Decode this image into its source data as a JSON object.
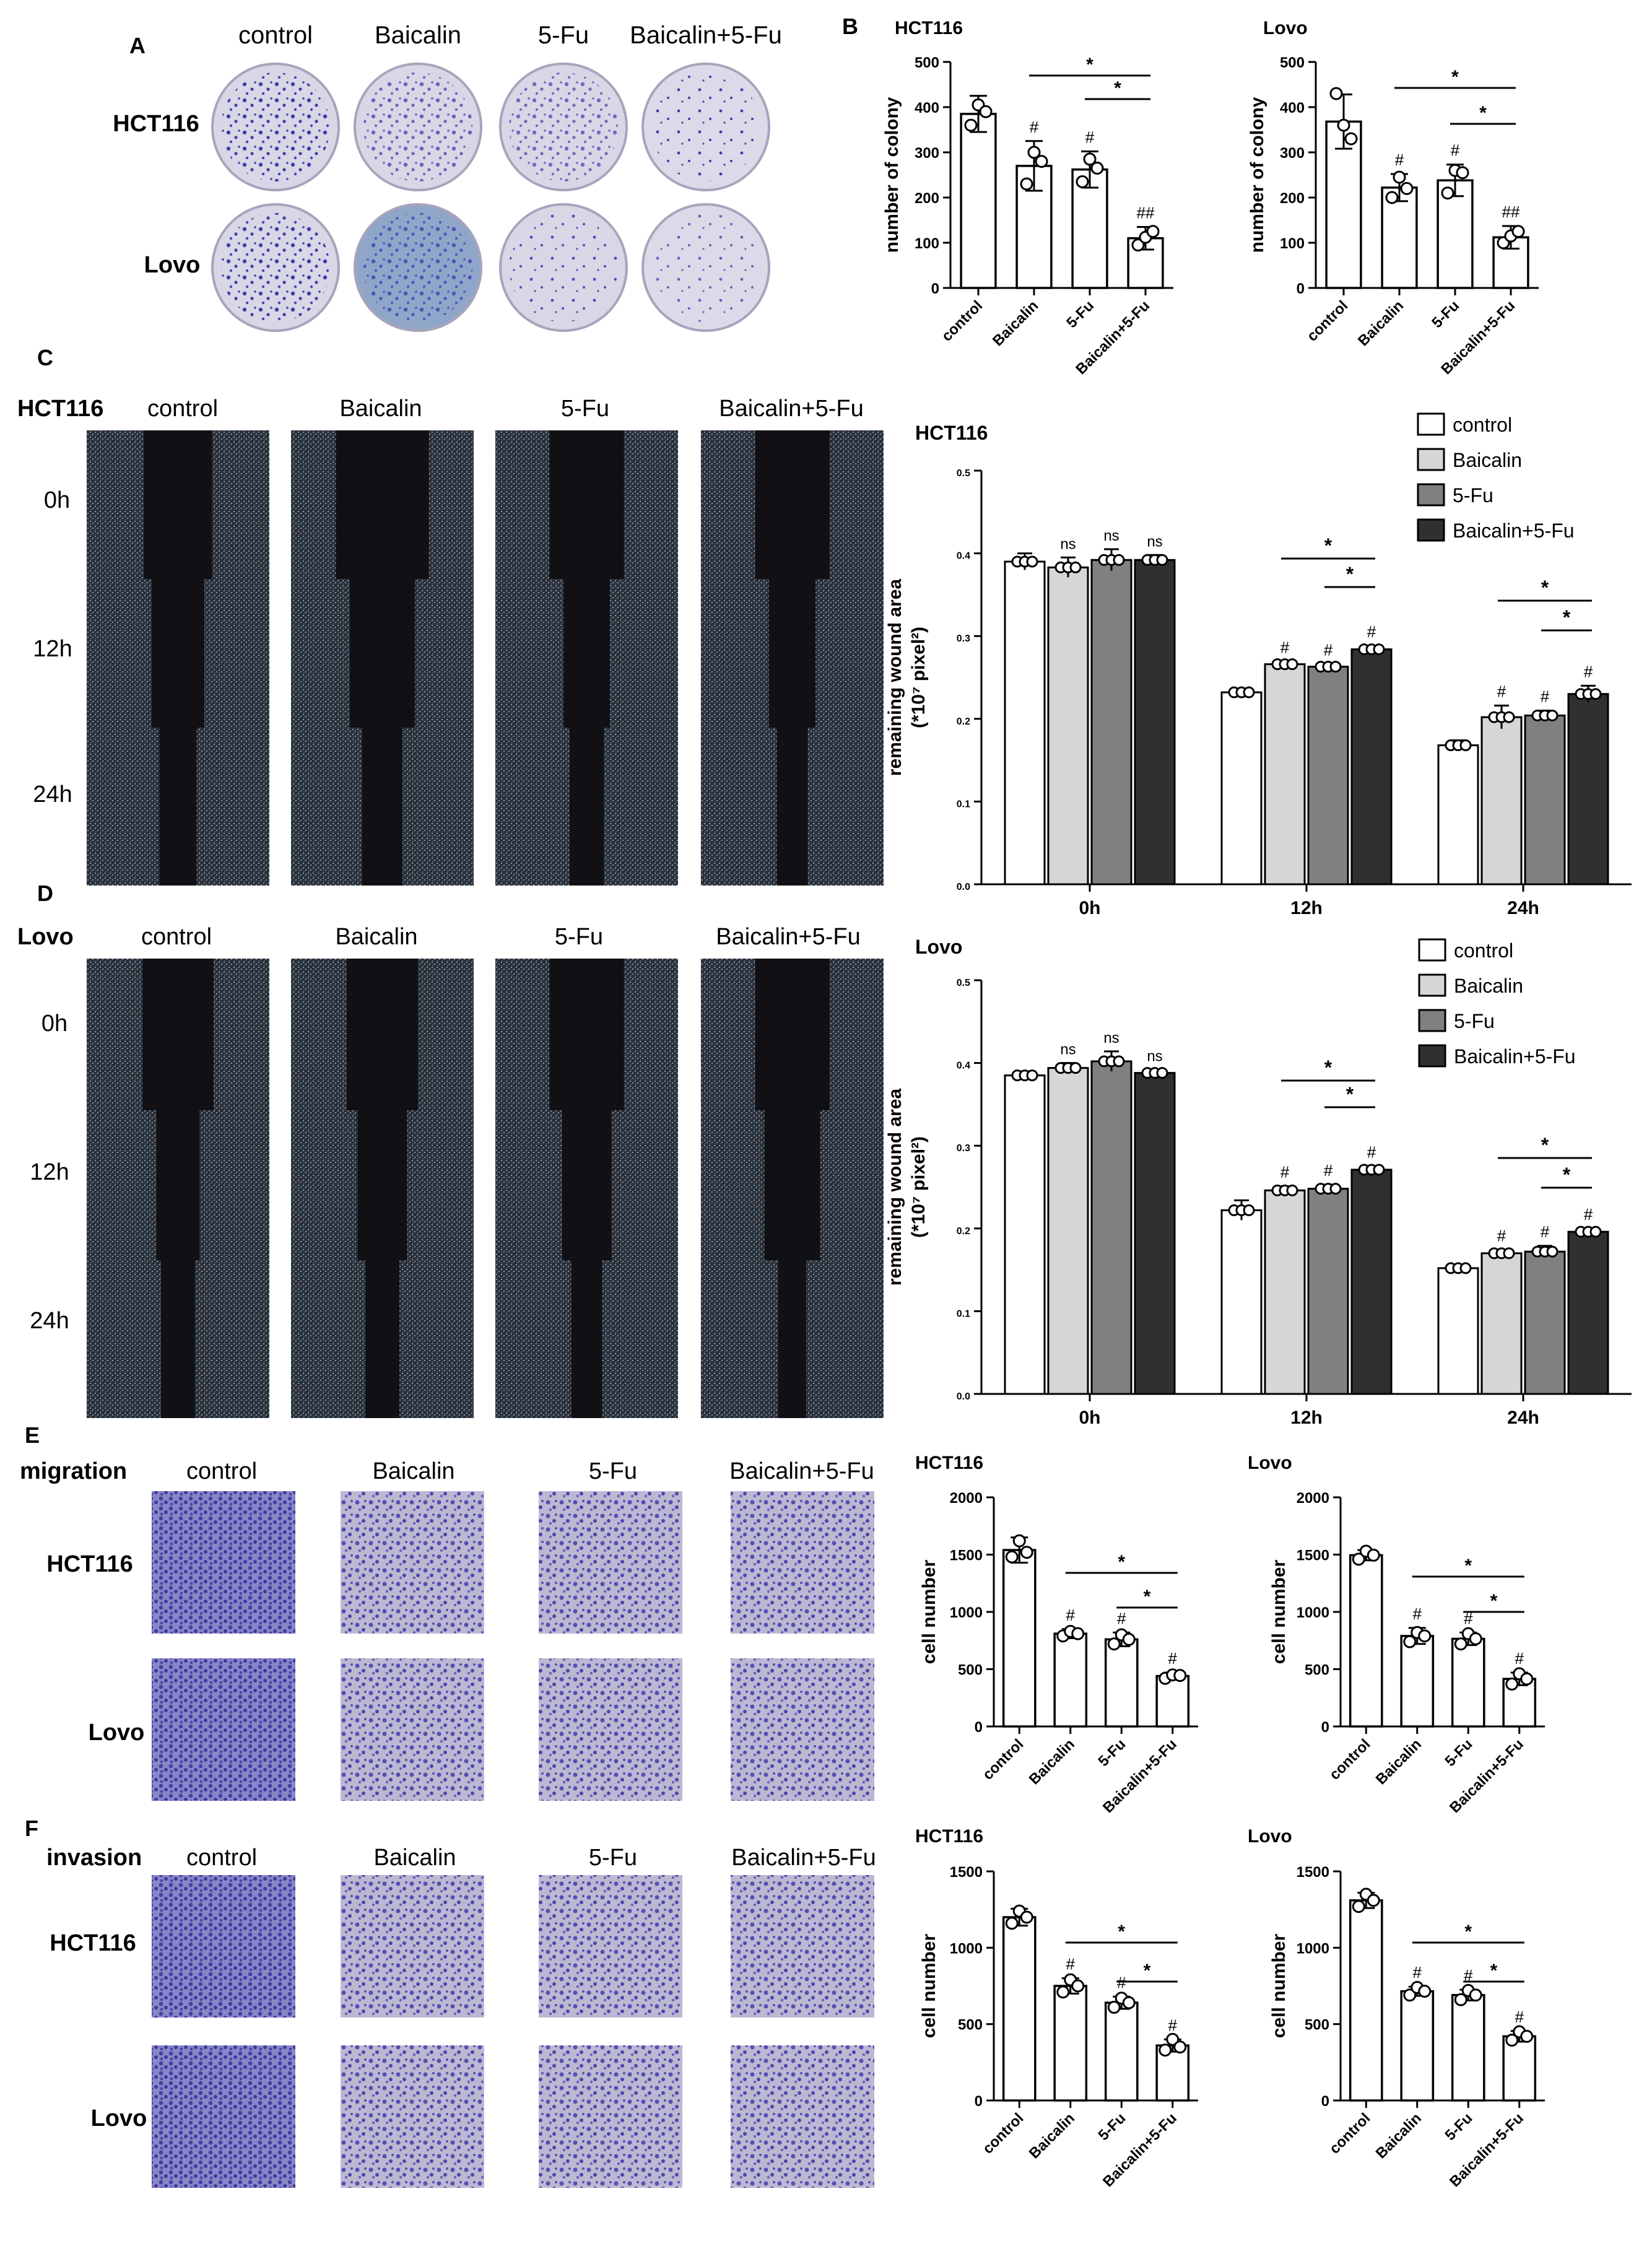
{
  "panel_letters": [
    "A",
    "B",
    "C",
    "D",
    "E",
    "F"
  ],
  "conditions": [
    "control",
    "Baicalin",
    "5-Fu",
    "Baicalin+5-Fu"
  ],
  "panelA": {
    "rows": [
      "HCT116",
      "Lovo"
    ]
  },
  "panelC": {
    "cell_line": "HCT116",
    "rows": [
      "0h",
      "12h",
      "24h"
    ]
  },
  "panelD": {
    "cell_line": "Lovo",
    "rows": [
      "0h",
      "12h",
      "24h"
    ]
  },
  "panelE": {
    "assay": "migration",
    "rows": [
      "HCT116",
      "Lovo"
    ]
  },
  "panelF": {
    "assay": "invasion",
    "rows": [
      "HCT116",
      "Lovo"
    ]
  },
  "colors": {
    "control": "#ffffff",
    "Baicalin": "#d6d6d6",
    "5-Fu": "#808080",
    "Baicalin+5-Fu": "#303030",
    "dish_stain": "#3b3fb0",
    "wound_dark": "#101015",
    "cells": "#6a84a8",
    "transwell_bg": "#b9b4d0",
    "transwell_cells": "#4f4cb0"
  },
  "chart_data": [
    {
      "id": "B1",
      "type": "bar",
      "title": "HCT116",
      "ylabel": "number of colony",
      "ylim": [
        0,
        500
      ],
      "yticks": [
        0,
        100,
        200,
        300,
        400,
        500
      ],
      "categories": [
        "control",
        "Baicalin",
        "5-Fu",
        "Baicalin+5-Fu"
      ],
      "values": [
        385,
        270,
        262,
        110
      ],
      "errors": [
        40,
        55,
        40,
        25
      ],
      "points": [
        [
          360,
          405,
          390
        ],
        [
          230,
          300,
          280
        ],
        [
          235,
          285,
          265
        ],
        [
          95,
          112,
          125
        ]
      ],
      "marks": [
        "",
        "#",
        "#",
        "##"
      ],
      "brackets": [
        {
          "from": 1,
          "to": 3,
          "label": "*"
        },
        {
          "from": 2,
          "to": 3,
          "label": "*"
        }
      ]
    },
    {
      "id": "B2",
      "type": "bar",
      "title": "Lovo",
      "ylabel": "number of colony",
      "ylim": [
        0,
        500
      ],
      "yticks": [
        0,
        100,
        200,
        300,
        400,
        500
      ],
      "categories": [
        "control",
        "Baicalin",
        "5-Fu",
        "Baicalin+5-Fu"
      ],
      "values": [
        368,
        222,
        238,
        112
      ],
      "errors": [
        60,
        30,
        35,
        25
      ],
      "points": [
        [
          430,
          360,
          330
        ],
        [
          200,
          245,
          220
        ],
        [
          210,
          260,
          255
        ],
        [
          100,
          115,
          125
        ]
      ],
      "marks": [
        "",
        "#",
        "#",
        "##"
      ],
      "brackets": [
        {
          "from": 1,
          "to": 3,
          "label": "*"
        },
        {
          "from": 2,
          "to": 3,
          "label": "*"
        }
      ]
    },
    {
      "id": "C2",
      "type": "grouped_bar",
      "title": "HCT116",
      "ylabel": "remaining wound area",
      "ylabel2": "(*10⁷ pixel²)",
      "ylim": [
        0,
        0.5
      ],
      "yticks": [
        0,
        0.1,
        0.2,
        0.3,
        0.4,
        0.5
      ],
      "categories": [
        "0h",
        "12h",
        "24h"
      ],
      "series": [
        {
          "name": "control",
          "values": [
            0.39,
            0.232,
            0.168
          ],
          "errors": [
            0.01,
            0.004,
            0.006
          ]
        },
        {
          "name": "Baicalin",
          "values": [
            0.383,
            0.266,
            0.202
          ],
          "errors": [
            0.012,
            0.003,
            0.014
          ]
        },
        {
          "name": "5-Fu",
          "values": [
            0.392,
            0.263,
            0.204
          ],
          "errors": [
            0.013,
            0.003,
            0.006
          ]
        },
        {
          "name": "Baicalin+5-Fu",
          "values": [
            0.392,
            0.284,
            0.23
          ],
          "errors": [
            0.006,
            0.004,
            0.01
          ]
        }
      ],
      "marks": [
        [
          "",
          "ns",
          "ns",
          "ns"
        ],
        [
          "",
          "#",
          "#",
          "#"
        ],
        [
          "",
          "#",
          "#",
          "#"
        ]
      ],
      "brackets": [
        {
          "group": 1,
          "from": 1,
          "to": 3,
          "label": "*"
        },
        {
          "group": 1,
          "from": 2,
          "to": 3,
          "label": "*"
        },
        {
          "group": 2,
          "from": 1,
          "to": 3,
          "label": "*"
        },
        {
          "group": 2,
          "from": 2,
          "to": 3,
          "label": "*"
        }
      ]
    },
    {
      "id": "D2",
      "type": "grouped_bar",
      "title": "Lovo",
      "ylabel": "remaining wound area",
      "ylabel2": "(*10⁷ pixel²)",
      "ylim": [
        0,
        0.5
      ],
      "yticks": [
        0,
        0.1,
        0.2,
        0.3,
        0.4,
        0.5
      ],
      "categories": [
        "0h",
        "12h",
        "24h"
      ],
      "series": [
        {
          "name": "control",
          "values": [
            0.385,
            0.222,
            0.152
          ],
          "errors": [
            0.005,
            0.012,
            0.004
          ]
        },
        {
          "name": "Baicalin",
          "values": [
            0.394,
            0.246,
            0.17
          ],
          "errors": [
            0.006,
            0.005,
            0.004
          ]
        },
        {
          "name": "5-Fu",
          "values": [
            0.402,
            0.248,
            0.172
          ],
          "errors": [
            0.012,
            0.005,
            0.007
          ]
        },
        {
          "name": "Baicalin+5-Fu",
          "values": [
            0.388,
            0.271,
            0.196
          ],
          "errors": [
            0.004,
            0.004,
            0.004
          ]
        }
      ],
      "marks": [
        [
          "",
          "ns",
          "ns",
          "ns"
        ],
        [
          "",
          "#",
          "#",
          "#"
        ],
        [
          "",
          "#",
          "#",
          "#"
        ]
      ],
      "brackets": [
        {
          "group": 1,
          "from": 1,
          "to": 3,
          "label": "*"
        },
        {
          "group": 1,
          "from": 2,
          "to": 3,
          "label": "*"
        },
        {
          "group": 2,
          "from": 1,
          "to": 3,
          "label": "*"
        },
        {
          "group": 2,
          "from": 2,
          "to": 3,
          "label": "*"
        }
      ]
    },
    {
      "id": "E1",
      "type": "bar",
      "title": "HCT116",
      "ylabel": "cell number",
      "ylim": [
        0,
        2000
      ],
      "yticks": [
        0,
        500,
        1000,
        1500,
        2000
      ],
      "categories": [
        "control",
        "Baicalin",
        "5-Fu",
        "Baicalin+5-Fu"
      ],
      "values": [
        1540,
        810,
        760,
        440
      ],
      "errors": [
        110,
        40,
        60,
        30
      ],
      "points": [
        [
          1480,
          1620,
          1520
        ],
        [
          790,
          830,
          810
        ],
        [
          720,
          800,
          760
        ],
        [
          420,
          450,
          445
        ]
      ],
      "marks": [
        "",
        "#",
        "#",
        "#"
      ],
      "brackets": [
        {
          "from": 1,
          "to": 3,
          "label": "*"
        },
        {
          "from": 2,
          "to": 3,
          "label": "*"
        }
      ]
    },
    {
      "id": "E2",
      "type": "bar",
      "title": "Lovo",
      "ylabel": "cell number",
      "ylim": [
        0,
        2000
      ],
      "yticks": [
        0,
        500,
        1000,
        1500,
        2000
      ],
      "categories": [
        "control",
        "Baicalin",
        "5-Fu",
        "Baicalin+5-Fu"
      ],
      "values": [
        1495,
        790,
        765,
        415
      ],
      "errors": [
        45,
        70,
        55,
        55
      ],
      "points": [
        [
          1460,
          1530,
          1495
        ],
        [
          740,
          820,
          790
        ],
        [
          720,
          810,
          765
        ],
        [
          370,
          460,
          415
        ]
      ],
      "marks": [
        "",
        "#",
        "#",
        "#"
      ],
      "brackets": [
        {
          "from": 1,
          "to": 3,
          "label": "*"
        },
        {
          "from": 2,
          "to": 3,
          "label": "*"
        }
      ]
    },
    {
      "id": "F1",
      "type": "bar",
      "title": "HCT116",
      "ylabel": "cell number",
      "ylim": [
        0,
        1500
      ],
      "yticks": [
        0,
        500,
        1000,
        1500
      ],
      "categories": [
        "control",
        "Baicalin",
        "5-Fu",
        "Baicalin+5-Fu"
      ],
      "values": [
        1200,
        750,
        640,
        360
      ],
      "errors": [
        55,
        50,
        40,
        40
      ],
      "points": [
        [
          1160,
          1240,
          1200
        ],
        [
          710,
          790,
          750
        ],
        [
          610,
          670,
          640
        ],
        [
          330,
          400,
          350
        ]
      ],
      "marks": [
        "",
        "#",
        "#",
        "#"
      ],
      "brackets": [
        {
          "from": 1,
          "to": 3,
          "label": "*"
        },
        {
          "from": 2,
          "to": 3,
          "label": "*"
        }
      ]
    },
    {
      "id": "F2",
      "type": "bar",
      "title": "Lovo",
      "ylabel": "cell number",
      "ylim": [
        0,
        1500
      ],
      "yticks": [
        0,
        500,
        1000,
        1500
      ],
      "categories": [
        "control",
        "Baicalin",
        "5-Fu",
        "Baicalin+5-Fu"
      ],
      "values": [
        1310,
        715,
        690,
        420
      ],
      "errors": [
        50,
        30,
        35,
        35
      ],
      "points": [
        [
          1270,
          1350,
          1310
        ],
        [
          690,
          740,
          715
        ],
        [
          660,
          720,
          690
        ],
        [
          395,
          450,
          420
        ]
      ],
      "marks": [
        "",
        "#",
        "#",
        "#"
      ],
      "brackets": [
        {
          "from": 1,
          "to": 3,
          "label": "*"
        },
        {
          "from": 2,
          "to": 3,
          "label": "*"
        }
      ]
    }
  ]
}
